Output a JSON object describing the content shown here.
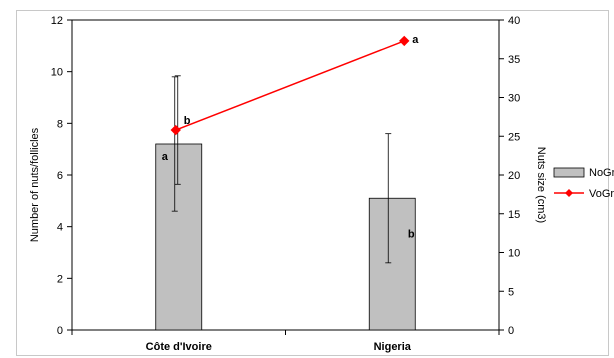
{
  "chart_data": {
    "type": "bar",
    "categories": [
      "Côte d'Ivoire",
      "Nigeria"
    ],
    "series": [
      {
        "name": "NoGr",
        "type": "bar",
        "axis": "left",
        "values": [
          7.2,
          5.1
        ],
        "error": [
          2.6,
          2.5
        ],
        "annotations": [
          "a",
          "b"
        ],
        "color": "#c0c0c0"
      },
      {
        "name": "VoGr",
        "type": "line",
        "axis": "right",
        "values": [
          25.8,
          37.3
        ],
        "error": [
          7.0,
          null
        ],
        "annotations": [
          "b",
          "a"
        ],
        "color": "#ff0000"
      }
    ],
    "left_axis": {
      "title": "Number of nuts/follicles",
      "min": 0,
      "max": 12,
      "ticks": [
        "0",
        "2",
        "4",
        "6",
        "8",
        "10",
        "12"
      ]
    },
    "right_axis": {
      "title": "Nuts size (cm3)",
      "min": 0,
      "max": 40,
      "ticks": [
        "0",
        "5",
        "10",
        "15",
        "20",
        "25",
        "30",
        "35",
        "40"
      ]
    },
    "grid": false,
    "legend_position": "right"
  }
}
